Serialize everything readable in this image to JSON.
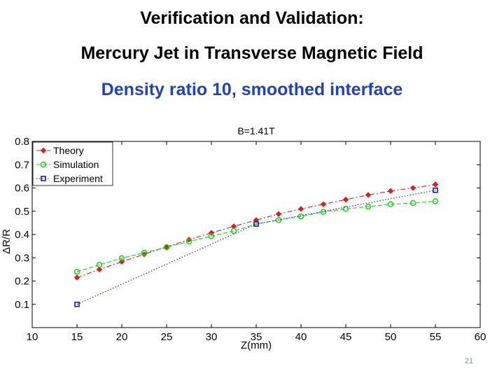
{
  "slide": {
    "title": "Verification and Validation:",
    "subtitle": "Mercury Jet in Transverse Magnetic Field",
    "caption": "Density ratio 10, smoothed interface",
    "caption_color": "#2243b8",
    "slide_number": "21"
  },
  "chart_data": {
    "type": "line",
    "title": "B=1.41T",
    "xlabel": "Z(mm)",
    "ylabel": "ΔR/R",
    "xlim": [
      10,
      60
    ],
    "ylim": [
      0,
      0.8
    ],
    "xticks": [
      10,
      15,
      20,
      25,
      30,
      35,
      40,
      45,
      50,
      55,
      60
    ],
    "yticks": [
      0.1,
      0.2,
      0.3,
      0.4,
      0.5,
      0.6,
      0.7,
      0.8
    ],
    "ytick_labels": [
      "0.1",
      "0.2",
      "0.3",
      "0.4",
      "0.5",
      "0.6",
      "0.7",
      "0.8"
    ],
    "grid": false,
    "legend_position": "top-left",
    "series": [
      {
        "name": "Theory",
        "color": "#d62020",
        "marker": "diamond",
        "linestyle": "dashdot",
        "x": [
          15,
          17.5,
          20,
          22.5,
          25,
          27.5,
          30,
          32.5,
          35,
          37.5,
          40,
          42.5,
          45,
          47.5,
          50,
          52.5,
          55
        ],
        "y": [
          0.215,
          0.25,
          0.283,
          0.315,
          0.347,
          0.378,
          0.407,
          0.435,
          0.462,
          0.488,
          0.51,
          0.53,
          0.55,
          0.57,
          0.587,
          0.6,
          0.615
        ]
      },
      {
        "name": "Simulation",
        "color": "#22cc22",
        "marker": "circle",
        "linestyle": "dashed",
        "x": [
          15,
          17.5,
          20,
          22.5,
          25,
          27.5,
          30,
          32.5,
          35,
          37.5,
          40,
          42.5,
          45,
          47.5,
          50,
          52.5,
          55
        ],
        "y": [
          0.24,
          0.27,
          0.298,
          0.322,
          0.345,
          0.37,
          0.393,
          0.415,
          0.445,
          0.462,
          0.478,
          0.497,
          0.51,
          0.52,
          0.53,
          0.535,
          0.543
        ]
      },
      {
        "name": "Experiment",
        "color": "#1a1aa8",
        "marker": "square",
        "linestyle": "dotted",
        "x": [
          15,
          35,
          55
        ],
        "y": [
          0.1,
          0.445,
          0.59
        ]
      }
    ]
  }
}
